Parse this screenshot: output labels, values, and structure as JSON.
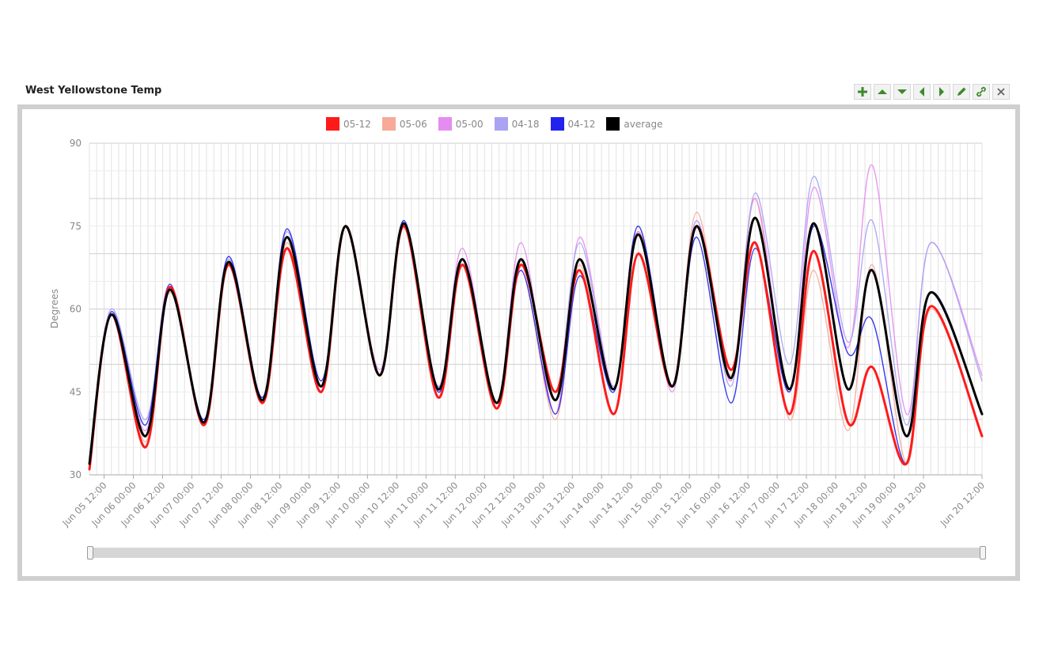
{
  "widget": {
    "title": "West Yellowstone Temp",
    "toolbar": [
      {
        "name": "add-icon",
        "color": "#3d8a2a"
      },
      {
        "name": "arrow-up-icon",
        "color": "#3d8a2a"
      },
      {
        "name": "arrow-down-icon",
        "color": "#3d8a2a"
      },
      {
        "name": "arrow-left-icon",
        "color": "#3d8a2a"
      },
      {
        "name": "arrow-right-icon",
        "color": "#3d8a2a"
      },
      {
        "name": "pencil-icon",
        "color": "#3d8a2a"
      },
      {
        "name": "link-icon",
        "color": "#3d8a2a"
      },
      {
        "name": "close-icon",
        "color": "#666666"
      }
    ]
  },
  "chart_data": {
    "type": "line",
    "title": "",
    "ylabel": "Degrees",
    "xlabel": "",
    "ylim": [
      30,
      90
    ],
    "yticks": [
      30,
      45,
      60,
      75,
      90
    ],
    "xlim": [
      "Jun 05 06:00",
      "Jun 20 12:00"
    ],
    "xtick_labels": [
      "Jun 05 12:00",
      "Jun 06 00:00",
      "Jun 06 12:00",
      "Jun 07 00:00",
      "Jun 07 12:00",
      "Jun 08 00:00",
      "Jun 08 12:00",
      "Jun 09 00:00",
      "Jun 09 12:00",
      "Jun 10 00:00",
      "Jun 10 12:00",
      "Jun 11 00:00",
      "Jun 11 12:00",
      "Jun 12 00:00",
      "Jun 12 12:00",
      "Jun 13 00:00",
      "Jun 13 12:00",
      "Jun 14 00:00",
      "Jun 14 12:00",
      "Jun 15 00:00",
      "Jun 15 12:00",
      "Jun 16 00:00",
      "Jun 16 12:00",
      "Jun 17 00:00",
      "Jun 17 12:00",
      "Jun 18 00:00",
      "Jun 18 12:00",
      "Jun 19 00:00",
      "Jun 19 12:00",
      "Jun 20 12:00"
    ],
    "grid": true,
    "legend_position": "top",
    "x": [
      "Jun 05 06:00",
      "Jun 05 15:00",
      "Jun 06 05:00",
      "Jun 06 15:00",
      "Jun 07 05:00",
      "Jun 07 15:00",
      "Jun 08 05:00",
      "Jun 08 15:00",
      "Jun 09 05:00",
      "Jun 09 15:00",
      "Jun 10 05:00",
      "Jun 10 15:00",
      "Jun 11 05:00",
      "Jun 11 15:00",
      "Jun 12 05:00",
      "Jun 12 15:00",
      "Jun 13 05:00",
      "Jun 13 15:00",
      "Jun 14 05:00",
      "Jun 14 15:00",
      "Jun 15 05:00",
      "Jun 15 15:00",
      "Jun 16 05:00",
      "Jun 16 15:00",
      "Jun 17 05:00",
      "Jun 17 15:00",
      "Jun 18 05:00",
      "Jun 18 15:00",
      "Jun 19 05:00",
      "Jun 19 15:00",
      "Jun 20 12:00"
    ],
    "series": [
      {
        "name": "05-12",
        "color": "#ff1a1a",
        "width": 3,
        "values": [
          31,
          59,
          35,
          64,
          39,
          68,
          43,
          71,
          45,
          75,
          48,
          75,
          44,
          68,
          42,
          68,
          45,
          67,
          41,
          70,
          46,
          75,
          49,
          72,
          41,
          70.5,
          39.5,
          49.5,
          32,
          60.5,
          37
        ]
      },
      {
        "name": "05-06",
        "color": "#f7a99a",
        "width": 1.4,
        "values": [
          31,
          59,
          36,
          63,
          39,
          68,
          43,
          72,
          46,
          75,
          48,
          75,
          45,
          68,
          42,
          67,
          40,
          68,
          41,
          74,
          46,
          77.5,
          48,
          80,
          40,
          67,
          38,
          68,
          32,
          60,
          37
        ]
      },
      {
        "name": "05-00",
        "color": "#e58cf0",
        "width": 1.4,
        "values": [
          32,
          59,
          38,
          64,
          40,
          68,
          44,
          73,
          46,
          75,
          49,
          75,
          46,
          71,
          43,
          72,
          41,
          73,
          46,
          74,
          45,
          76,
          47,
          80,
          45,
          82,
          53,
          86,
          41,
          72,
          48
        ]
      },
      {
        "name": "04-18",
        "color": "#a9a3f2",
        "width": 1.4,
        "values": [
          33,
          60,
          40,
          64,
          40,
          69,
          44,
          74,
          47,
          75,
          48,
          76,
          46,
          69,
          43,
          69,
          45,
          72,
          46,
          75,
          46,
          76,
          46,
          81,
          50,
          84,
          54,
          76,
          39,
          72,
          47
        ]
      },
      {
        "name": "04-12",
        "color": "#2222ee",
        "width": 1.4,
        "values": [
          33,
          59.5,
          39,
          64.5,
          40,
          69.5,
          44,
          74.5,
          47,
          75,
          48,
          76,
          45,
          68,
          43,
          67,
          41,
          66,
          45,
          75,
          46,
          73,
          43,
          71,
          45,
          75,
          52,
          58,
          32,
          63,
          41
        ]
      },
      {
        "name": "average",
        "color": "#000000",
        "width": 3,
        "values": [
          32,
          59,
          37,
          63.5,
          39.5,
          68.5,
          43.5,
          73,
          46,
          75,
          48,
          75.5,
          45.5,
          69,
          43,
          69,
          43.5,
          69,
          45.5,
          73.5,
          46,
          75,
          47.5,
          76.5,
          45.5,
          75.5,
          45.5,
          67,
          37,
          63,
          41
        ]
      }
    ]
  }
}
